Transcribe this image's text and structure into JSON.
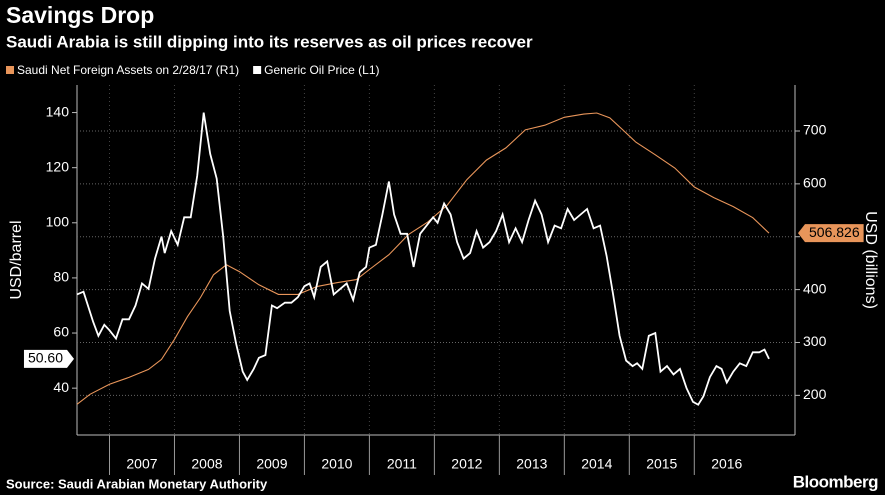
{
  "chart_data": {
    "type": "line",
    "title": "Savings Drop",
    "subtitle": "Saudi Arabia is still dipping into its reserves as oil prices recover",
    "source": "Source: Saudi Arabian Monetary Authority",
    "brand": "Bloomberg",
    "ylabel": "USD/barrel",
    "y2label": "USD (billions)",
    "xlim": [
      2006.5,
      2017.55
    ],
    "xticks": [
      2007,
      2008,
      2009,
      2010,
      2011,
      2012,
      2013,
      2014,
      2015,
      2016
    ],
    "ylim": [
      23,
      150
    ],
    "yticks": [
      40,
      60,
      80,
      100,
      120,
      140
    ],
    "y2lim": [
      125,
      787
    ],
    "y2ticks": [
      200,
      300,
      400,
      500,
      600,
      700
    ],
    "grid": true,
    "legend": "top-left",
    "series": [
      {
        "name": "Saudi Net Foreign Assets on 2/28/17 (R1)",
        "color": "#e8955a",
        "axis": "y2",
        "x": [
          2006.5,
          2006.7,
          2007.0,
          2007.3,
          2007.6,
          2007.8,
          2008.0,
          2008.2,
          2008.4,
          2008.6,
          2008.8,
          2009.0,
          2009.3,
          2009.6,
          2009.9,
          2010.2,
          2010.5,
          2010.8,
          2011.0,
          2011.3,
          2011.6,
          2011.9,
          2012.2,
          2012.5,
          2012.8,
          2013.1,
          2013.4,
          2013.7,
          2014.0,
          2014.3,
          2014.5,
          2014.7,
          2014.9,
          2015.1,
          2015.4,
          2015.7,
          2016.0,
          2016.3,
          2016.6,
          2016.9,
          2017.15
        ],
        "values": [
          183,
          202,
          221,
          234,
          249,
          268,
          306,
          349,
          385,
          428,
          447,
          434,
          409,
          391,
          391,
          406,
          413,
          419,
          438,
          466,
          504,
          528,
          560,
          608,
          645,
          668,
          702,
          711,
          726,
          732,
          734,
          725,
          702,
          679,
          655,
          630,
          594,
          574,
          557,
          536,
          506.826
        ],
        "value_labels": [
          null,
          null,
          null,
          null,
          null,
          null,
          null,
          null,
          null,
          null,
          null,
          null,
          null,
          null,
          null,
          null,
          null,
          null,
          null,
          null,
          null,
          null,
          null,
          null,
          null,
          null,
          null,
          null,
          null,
          null,
          null,
          null,
          null,
          null,
          null,
          null,
          null,
          null,
          null,
          null,
          "506.826"
        ]
      },
      {
        "name": "Generic Oil Price (L1)",
        "color": "#ffffff",
        "x": [
          2006.5,
          2006.6,
          2006.75,
          2006.83,
          2006.92,
          2007.0,
          2007.1,
          2007.2,
          2007.3,
          2007.4,
          2007.5,
          2007.6,
          2007.7,
          2007.8,
          2007.85,
          2007.95,
          2008.05,
          2008.15,
          2008.25,
          2008.35,
          2008.45,
          2008.55,
          2008.65,
          2008.75,
          2008.85,
          2008.95,
          2009.05,
          2009.12,
          2009.22,
          2009.3,
          2009.4,
          2009.5,
          2009.58,
          2009.7,
          2009.8,
          2009.9,
          2010.0,
          2010.08,
          2010.15,
          2010.25,
          2010.35,
          2010.45,
          2010.55,
          2010.65,
          2010.75,
          2010.85,
          2010.95,
          2011.0,
          2011.1,
          2011.2,
          2011.3,
          2011.38,
          2011.48,
          2011.58,
          2011.68,
          2011.78,
          2011.88,
          2011.98,
          2012.05,
          2012.15,
          2012.25,
          2012.35,
          2012.45,
          2012.55,
          2012.65,
          2012.75,
          2012.85,
          2012.95,
          2013.05,
          2013.15,
          2013.25,
          2013.35,
          2013.45,
          2013.55,
          2013.65,
          2013.75,
          2013.85,
          2013.95,
          2014.05,
          2014.15,
          2014.25,
          2014.35,
          2014.45,
          2014.55,
          2014.65,
          2014.75,
          2014.85,
          2014.95,
          2015.05,
          2015.12,
          2015.2,
          2015.3,
          2015.4,
          2015.48,
          2015.58,
          2015.68,
          2015.78,
          2015.88,
          2015.98,
          2016.06,
          2016.14,
          2016.24,
          2016.34,
          2016.42,
          2016.5,
          2016.6,
          2016.7,
          2016.8,
          2016.9,
          2017.0,
          2017.08,
          2017.15
        ],
        "values": [
          74,
          75,
          64,
          59,
          63,
          61,
          58,
          65,
          65,
          70,
          78,
          76,
          87,
          95,
          89,
          97,
          92,
          102,
          102,
          117,
          140,
          125,
          116,
          95,
          68,
          56,
          46,
          43,
          47,
          51,
          52,
          70,
          69,
          71,
          71,
          73,
          77,
          78,
          73,
          84,
          86,
          74,
          76,
          78,
          72,
          82,
          84,
          91,
          92,
          103,
          115,
          103,
          96,
          96,
          84,
          96,
          99,
          102,
          100,
          107,
          103,
          93,
          87,
          89,
          97,
          91,
          93,
          97,
          103,
          93,
          98,
          93,
          101,
          108,
          103,
          93,
          99,
          98,
          105,
          101,
          103,
          105,
          98,
          99,
          88,
          74,
          59,
          50,
          48,
          49,
          47,
          59,
          60,
          46,
          48,
          45,
          47,
          40,
          35,
          34,
          37,
          44,
          48,
          47,
          42,
          46,
          49,
          48,
          53,
          53,
          54,
          50.6
        ],
        "value_labels": [
          null,
          null,
          null,
          null,
          null,
          null,
          null,
          null,
          null,
          null,
          null,
          null,
          null,
          null,
          null,
          null,
          null,
          null,
          null,
          null,
          null,
          null,
          null,
          null,
          null,
          null,
          null,
          null,
          null,
          null,
          null,
          null,
          null,
          null,
          null,
          null,
          null,
          null,
          null,
          null,
          null,
          null,
          null,
          null,
          null,
          null,
          null,
          null,
          null,
          null,
          null,
          null,
          null,
          null,
          null,
          null,
          null,
          null,
          null,
          null,
          null,
          null,
          null,
          null,
          null,
          null,
          null,
          null,
          null,
          null,
          null,
          null,
          null,
          null,
          null,
          null,
          null,
          null,
          null,
          null,
          null,
          null,
          null,
          null,
          null,
          null,
          null,
          null,
          null,
          null,
          null,
          null,
          null,
          null,
          null,
          null,
          null,
          null,
          null,
          null,
          null,
          null,
          null,
          null,
          null,
          null,
          null,
          null,
          null,
          null,
          null,
          "50.60"
        ]
      }
    ]
  }
}
